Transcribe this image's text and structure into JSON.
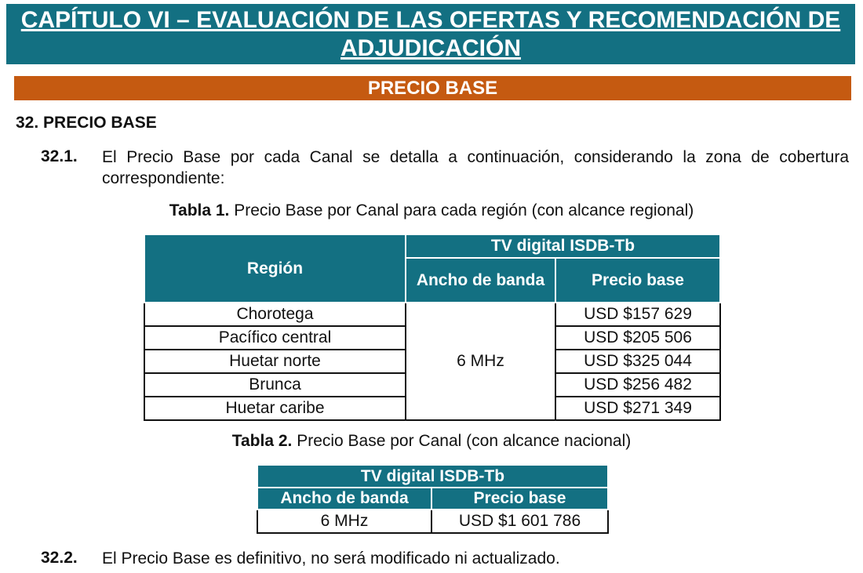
{
  "chapter_title": "CAPÍTULO VI – EVALUACIÓN DE LAS OFERTAS Y RECOMENDACIÓN DE ADJUDICACIÓN",
  "section_banner": "PRECIO BASE",
  "section_heading": "32. PRECIO BASE",
  "colors": {
    "teal": "#137082",
    "orange": "#c55a11"
  },
  "p1": {
    "number": "32.1.",
    "text": "El Precio Base por cada Canal se detalla a continuación, considerando la zona de cobertura correspondiente:"
  },
  "table1": {
    "caption_bold": "Tabla 1.",
    "caption": " Precio Base por Canal para cada región (con alcance regional)",
    "h_region": "Región",
    "h_group": "TV digital ISDB-Tb",
    "h_bandwidth": "Ancho de banda",
    "h_price": "Precio base",
    "bandwidth": "6 MHz",
    "rows": [
      {
        "region": "Chorotega",
        "price": "USD $157 629"
      },
      {
        "region": "Pacífico central",
        "price": "USD $205 506"
      },
      {
        "region": "Huetar norte",
        "price": "USD $325 044"
      },
      {
        "region": "Brunca",
        "price": "USD $256 482"
      },
      {
        "region": "Huetar caribe",
        "price": "USD $271 349"
      }
    ]
  },
  "table2": {
    "caption_bold": "Tabla 2.",
    "caption": " Precio Base por Canal (con alcance nacional)",
    "h_group": "TV digital ISDB-Tb",
    "h_bandwidth": "Ancho de banda",
    "h_price": "Precio base",
    "bandwidth": "6 MHz",
    "price": "USD $1 601 786"
  },
  "p2": {
    "number": "32.2.",
    "text": "El Precio Base es definitivo, no será modificado ni actualizado."
  }
}
